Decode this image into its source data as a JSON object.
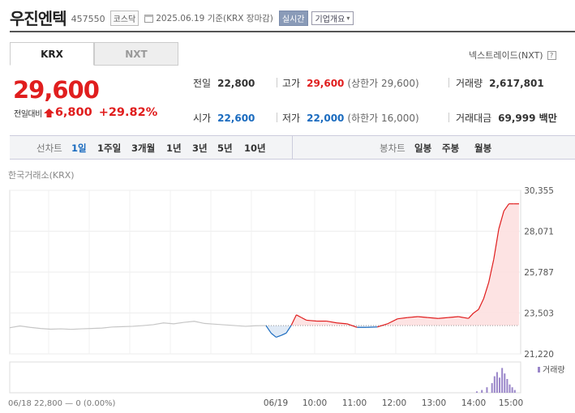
{
  "header": {
    "name": "우진엔텍",
    "code": "457550",
    "market": "코스닥",
    "date_label": "2025.06.19 기준(KRX 장마감)",
    "realtime": "실시간",
    "company_info": "기업개요"
  },
  "tabs": [
    {
      "label": "KRX",
      "active": true
    },
    {
      "label": "NXT",
      "active": false
    }
  ],
  "nxt_link": "넥스트레이드(NXT)",
  "price": {
    "current": "29,600",
    "change_label": "전일대비",
    "change": "6,800",
    "change_pct": "+29.82%"
  },
  "stats": {
    "prev_label": "전일",
    "prev": "22,800",
    "high_label": "고가",
    "high": "29,600",
    "upper_limit": "(상한가 29,600)",
    "volume_label": "거래량",
    "volume": "2,617,801",
    "open_label": "시가",
    "open": "22,600",
    "low_label": "저가",
    "low": "22,000",
    "lower_limit": "(하한가 16,000)",
    "amount_label": "거래대금",
    "amount": "69,999 백만"
  },
  "period_bar": {
    "line_label": "선차트",
    "line_periods": [
      "1일",
      "1주일",
      "3개월",
      "1년",
      "3년",
      "5년",
      "10년"
    ],
    "selected": "1일",
    "candle_label": "봉차트",
    "candle_periods": [
      "일봉",
      "주봉",
      "월봉"
    ]
  },
  "exchange_label": "한국거래소(KRX)",
  "colors": {
    "up": "#e01e1e",
    "down": "#1a6bbf",
    "prev_line": "#c6c6c6",
    "volume": "#9a86c9"
  },
  "chart_data": {
    "type": "line",
    "baseline": 22800,
    "ylim": [
      21220,
      30355
    ],
    "y_ticks": [
      "30,355",
      "28,071",
      "25,787",
      "23,503",
      "21,220"
    ],
    "x_ticks": [
      "06/19",
      "10:00",
      "11:00",
      "12:00",
      "13:00",
      "14:00",
      "15:00"
    ],
    "footer_left": "06/18 22,800 — 0 (0.00%)",
    "volume_legend": "거래량",
    "prev_day_series": {
      "x": [
        0,
        0.04,
        0.08,
        0.12,
        0.16,
        0.2,
        0.24,
        0.28,
        0.32,
        0.36,
        0.4,
        0.44,
        0.48,
        0.52,
        0.56,
        0.6,
        0.64,
        0.68,
        0.72,
        0.76,
        0.8,
        0.84,
        0.88,
        0.92,
        0.96,
        1
      ],
      "y": [
        22680,
        22780,
        22700,
        22640,
        22600,
        22620,
        22590,
        22620,
        22640,
        22660,
        22720,
        22740,
        22760,
        22800,
        22850,
        22950,
        22900,
        22980,
        23040,
        22920,
        22880,
        22840,
        22800,
        22760,
        22790,
        22800
      ]
    },
    "today_series": {
      "x": [
        0,
        0.02,
        0.04,
        0.06,
        0.08,
        0.1,
        0.12,
        0.14,
        0.16,
        0.2,
        0.24,
        0.28,
        0.32,
        0.36,
        0.4,
        0.44,
        0.48,
        0.52,
        0.56,
        0.6,
        0.64,
        0.68,
        0.72,
        0.76,
        0.8,
        0.82,
        0.84,
        0.86,
        0.88,
        0.9,
        0.92,
        0.94,
        0.96,
        0.98,
        1
      ],
      "y": [
        22800,
        22380,
        22150,
        22250,
        22380,
        22820,
        23400,
        23250,
        23100,
        23050,
        23050,
        22950,
        22900,
        22700,
        22700,
        22720,
        22900,
        23180,
        23250,
        23300,
        23250,
        23200,
        23250,
        23300,
        23200,
        23500,
        23700,
        24300,
        25200,
        26500,
        28200,
        29200,
        29600,
        29600,
        29600
      ]
    },
    "volume": {
      "x": [
        0.83,
        0.85,
        0.87,
        0.89,
        0.9,
        0.91,
        0.92,
        0.93,
        0.94,
        0.95,
        0.96,
        0.97,
        0.98
      ],
      "y": [
        0.05,
        0.1,
        0.2,
        0.35,
        0.6,
        0.75,
        0.55,
        0.9,
        0.7,
        0.5,
        0.3,
        0.2,
        0.1
      ]
    }
  }
}
